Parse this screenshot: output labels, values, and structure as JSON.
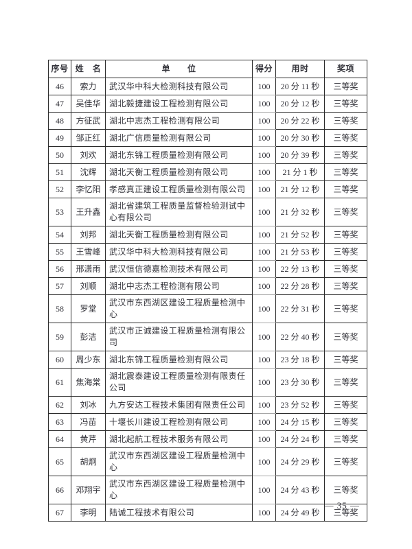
{
  "document": {
    "page_number": "— 35 —"
  },
  "table": {
    "column_keys": [
      "no",
      "name",
      "unit",
      "score",
      "time",
      "award"
    ],
    "headers": [
      "序号",
      "姓　名",
      "单　　位",
      "得分",
      "用时",
      "奖项"
    ],
    "rows": [
      {
        "no": "46",
        "name": "索力",
        "unit": "武汉华中科大检测科技有限公司",
        "score": "100",
        "time": "20 分 11 秒",
        "award": "三等奖"
      },
      {
        "no": "47",
        "name": "吴佳华",
        "unit": "湖北毅捷建设工程检测有限公司",
        "score": "100",
        "time": "20 分 12 秒",
        "award": "三等奖"
      },
      {
        "no": "48",
        "name": "方征武",
        "unit": "湖北中志杰工程检测有限公司",
        "score": "100",
        "time": "20 分 22 秒",
        "award": "三等奖"
      },
      {
        "no": "49",
        "name": "邹正红",
        "unit": "湖北广信质量检测有限公司",
        "score": "100",
        "time": "20 分 30 秒",
        "award": "三等奖"
      },
      {
        "no": "50",
        "name": "刘欢",
        "unit": "湖北东锦工程质量检测有限公司",
        "score": "100",
        "time": "20 分 39 秒",
        "award": "三等奖"
      },
      {
        "no": "51",
        "name": "沈辉",
        "unit": "湖北天衡工程质量检测有限公司",
        "score": "100",
        "time": "21 分 1 秒",
        "award": "三等奖"
      },
      {
        "no": "52",
        "name": "李忆阳",
        "unit": "孝感真正建设工程质量检测有限公司",
        "score": "100",
        "time": "21 分 12 秒",
        "award": "三等奖"
      },
      {
        "no": "53",
        "name": "王升鑫",
        "unit": "湖北省建筑工程质量监督检验测试中心有限公司",
        "score": "100",
        "time": "21 分 32 秒",
        "award": "三等奖"
      },
      {
        "no": "54",
        "name": "刘邦",
        "unit": "湖北天衡工程质量检测有限公司",
        "score": "100",
        "time": "21 分 52 秒",
        "award": "三等奖"
      },
      {
        "no": "55",
        "name": "王雪峰",
        "unit": "武汉华中科大检测科技有限公司",
        "score": "100",
        "time": "21 分 53 秒",
        "award": "三等奖"
      },
      {
        "no": "56",
        "name": "邢潇雨",
        "unit": "武汉恒信德嘉检测技术有限公司",
        "score": "100",
        "time": "22 分 13 秒",
        "award": "三等奖"
      },
      {
        "no": "57",
        "name": "刘顺",
        "unit": "湖北中志杰工程检测有限公司",
        "score": "100",
        "time": "22 分 28 秒",
        "award": "三等奖"
      },
      {
        "no": "58",
        "name": "罗堂",
        "unit": "武汉市东西湖区建设工程质量检测中心",
        "score": "100",
        "time": "22 分 31 秒",
        "award": "三等奖"
      },
      {
        "no": "59",
        "name": "彭洁",
        "unit": "武汉市正诚建设工程质量检测有限公司",
        "score": "100",
        "time": "22 分 40 秒",
        "award": "三等奖"
      },
      {
        "no": "60",
        "name": "周少东",
        "unit": "湖北东锦工程质量检测有限公司",
        "score": "100",
        "time": "23 分 18 秒",
        "award": "三等奖"
      },
      {
        "no": "61",
        "name": "焦海棠",
        "unit": "湖北震泰建设工程质量检测有限责任公司",
        "score": "100",
        "time": "23 分 30 秒",
        "award": "三等奖"
      },
      {
        "no": "62",
        "name": "刘冰",
        "unit": "九方安达工程技术集团有限责任公司",
        "score": "100",
        "time": "23 分 52 秒",
        "award": "三等奖"
      },
      {
        "no": "63",
        "name": "冯苗",
        "unit": "十堰长川建设工程检测有限公司",
        "score": "100",
        "time": "24 分 15 秒",
        "award": "三等奖"
      },
      {
        "no": "64",
        "name": "黄芹",
        "unit": "湖北起航工程技术服务有限公司",
        "score": "100",
        "time": "24 分 24 秒",
        "award": "三等奖"
      },
      {
        "no": "65",
        "name": "胡炯",
        "unit": "武汉市东西湖区建设工程质量检测中心",
        "score": "100",
        "time": "24 分 29 秒",
        "award": "三等奖"
      },
      {
        "no": "66",
        "name": "邓翔宇",
        "unit": "武汉市东西湖区建设工程质量检测中心",
        "score": "100",
        "time": "24 分 43 秒",
        "award": "三等奖"
      },
      {
        "no": "67",
        "name": "李明",
        "unit": "陆诚工程技术有限公司",
        "score": "100",
        "time": "24 分 49 秒",
        "award": "三等奖"
      }
    ]
  }
}
